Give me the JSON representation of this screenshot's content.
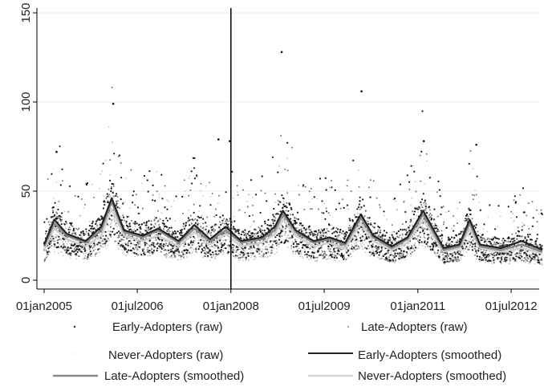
{
  "chart_data": {
    "type": "line",
    "title": "",
    "xlabel": "",
    "ylabel": "",
    "x_ticks": [
      "01jan2005",
      "01jul2006",
      "01jan2008",
      "01jul2009",
      "01jan2011",
      "01jul2012"
    ],
    "y_ticks": [
      "0",
      "50",
      "100",
      "150"
    ],
    "ylim": [
      0,
      150
    ],
    "xlim": [
      "01jan2005",
      "31dec2012"
    ],
    "grid": "horizontal",
    "reference_line": "01jan2008",
    "legend_position": "bottom",
    "series": [
      {
        "name": "Early-Adopters (raw)",
        "style": "points",
        "peaks": [
          {
            "x": "2005-03-15",
            "y": 72
          },
          {
            "x": "2006-02-10",
            "y": 99
          },
          {
            "x": "2007-10-20",
            "y": 79
          },
          {
            "x": "2007-12-25",
            "y": 78
          },
          {
            "x": "2008-10-25",
            "y": 128
          },
          {
            "x": "2010-02-05",
            "y": 106
          },
          {
            "x": "2011-02-05",
            "y": 78
          },
          {
            "x": "2011-12-10",
            "y": 76
          }
        ]
      },
      {
        "name": "Late-Adopters (raw)",
        "style": "points"
      },
      {
        "name": "Never-Adopters (raw)",
        "style": "points"
      },
      {
        "name": "Early-Adopters (smoothed)",
        "style": "line",
        "color": "#222222",
        "points": [
          [
            "2005-01-01",
            20
          ],
          [
            "2005-03-01",
            34
          ],
          [
            "2005-05-15",
            26
          ],
          [
            "2005-09-01",
            22
          ],
          [
            "2005-12-01",
            30
          ],
          [
            "2006-02-01",
            46
          ],
          [
            "2006-04-15",
            28
          ],
          [
            "2006-08-01",
            25
          ],
          [
            "2006-11-01",
            29
          ],
          [
            "2007-03-01",
            22
          ],
          [
            "2007-06-01",
            31
          ],
          [
            "2007-09-01",
            23
          ],
          [
            "2007-12-01",
            30
          ],
          [
            "2008-03-01",
            22
          ],
          [
            "2008-07-01",
            24
          ],
          [
            "2008-09-15",
            30
          ],
          [
            "2008-11-01",
            39
          ],
          [
            "2009-01-15",
            28
          ],
          [
            "2009-05-01",
            22
          ],
          [
            "2009-08-01",
            24
          ],
          [
            "2009-11-01",
            21
          ],
          [
            "2010-02-01",
            37
          ],
          [
            "2010-04-15",
            25
          ],
          [
            "2010-08-01",
            19
          ],
          [
            "2010-11-01",
            24
          ],
          [
            "2011-02-01",
            39
          ],
          [
            "2011-06-01",
            18
          ],
          [
            "2011-09-01",
            20
          ],
          [
            "2011-11-01",
            34
          ],
          [
            "2012-01-01",
            20
          ],
          [
            "2012-05-01",
            18
          ],
          [
            "2012-09-01",
            22
          ],
          [
            "2012-12-31",
            17
          ]
        ]
      },
      {
        "name": "Late-Adopters (smoothed)",
        "style": "line",
        "color": "#888888",
        "points": [
          [
            "2005-01-01",
            19
          ],
          [
            "2005-03-01",
            32
          ],
          [
            "2005-05-15",
            25
          ],
          [
            "2005-09-01",
            21
          ],
          [
            "2005-12-01",
            28
          ],
          [
            "2006-02-01",
            44
          ],
          [
            "2006-04-15",
            27
          ],
          [
            "2006-08-01",
            24
          ],
          [
            "2006-11-01",
            28
          ],
          [
            "2007-03-01",
            21
          ],
          [
            "2007-06-01",
            29
          ],
          [
            "2007-09-01",
            22
          ],
          [
            "2007-12-01",
            28
          ],
          [
            "2008-03-01",
            21
          ],
          [
            "2008-07-01",
            23
          ],
          [
            "2008-09-15",
            28
          ],
          [
            "2008-11-01",
            37
          ],
          [
            "2009-01-15",
            27
          ],
          [
            "2009-05-01",
            21
          ],
          [
            "2009-08-01",
            23
          ],
          [
            "2009-11-01",
            20
          ],
          [
            "2010-02-01",
            35
          ],
          [
            "2010-04-15",
            24
          ],
          [
            "2010-08-01",
            18
          ],
          [
            "2010-11-01",
            23
          ],
          [
            "2011-02-01",
            37
          ],
          [
            "2011-06-01",
            17
          ],
          [
            "2011-09-01",
            19
          ],
          [
            "2011-11-01",
            32
          ],
          [
            "2012-01-01",
            19
          ],
          [
            "2012-05-01",
            17
          ],
          [
            "2012-09-01",
            20
          ],
          [
            "2012-12-31",
            16
          ]
        ]
      },
      {
        "name": "Never-Adopters (smoothed)",
        "style": "line",
        "color": "#cfcfcf",
        "points": [
          [
            "2005-01-01",
            17
          ],
          [
            "2005-03-01",
            29
          ],
          [
            "2005-05-15",
            23
          ],
          [
            "2005-09-01",
            19
          ],
          [
            "2005-12-01",
            25
          ],
          [
            "2006-02-01",
            40
          ],
          [
            "2006-04-15",
            25
          ],
          [
            "2006-08-01",
            22
          ],
          [
            "2006-11-01",
            25
          ],
          [
            "2007-03-01",
            19
          ],
          [
            "2007-06-01",
            27
          ],
          [
            "2007-09-01",
            20
          ],
          [
            "2007-12-01",
            26
          ],
          [
            "2008-03-01",
            19
          ],
          [
            "2008-07-01",
            21
          ],
          [
            "2008-09-15",
            26
          ],
          [
            "2008-11-01",
            34
          ],
          [
            "2009-01-15",
            25
          ],
          [
            "2009-05-01",
            19
          ],
          [
            "2009-08-01",
            21
          ],
          [
            "2009-11-01",
            18
          ],
          [
            "2010-02-01",
            32
          ],
          [
            "2010-04-15",
            22
          ],
          [
            "2010-08-01",
            17
          ],
          [
            "2010-11-01",
            21
          ],
          [
            "2011-02-01",
            34
          ],
          [
            "2011-06-01",
            16
          ],
          [
            "2011-09-01",
            18
          ],
          [
            "2011-11-01",
            29
          ],
          [
            "2012-01-01",
            18
          ],
          [
            "2012-05-01",
            16
          ],
          [
            "2012-09-01",
            18
          ],
          [
            "2012-12-31",
            15
          ]
        ]
      }
    ]
  }
}
